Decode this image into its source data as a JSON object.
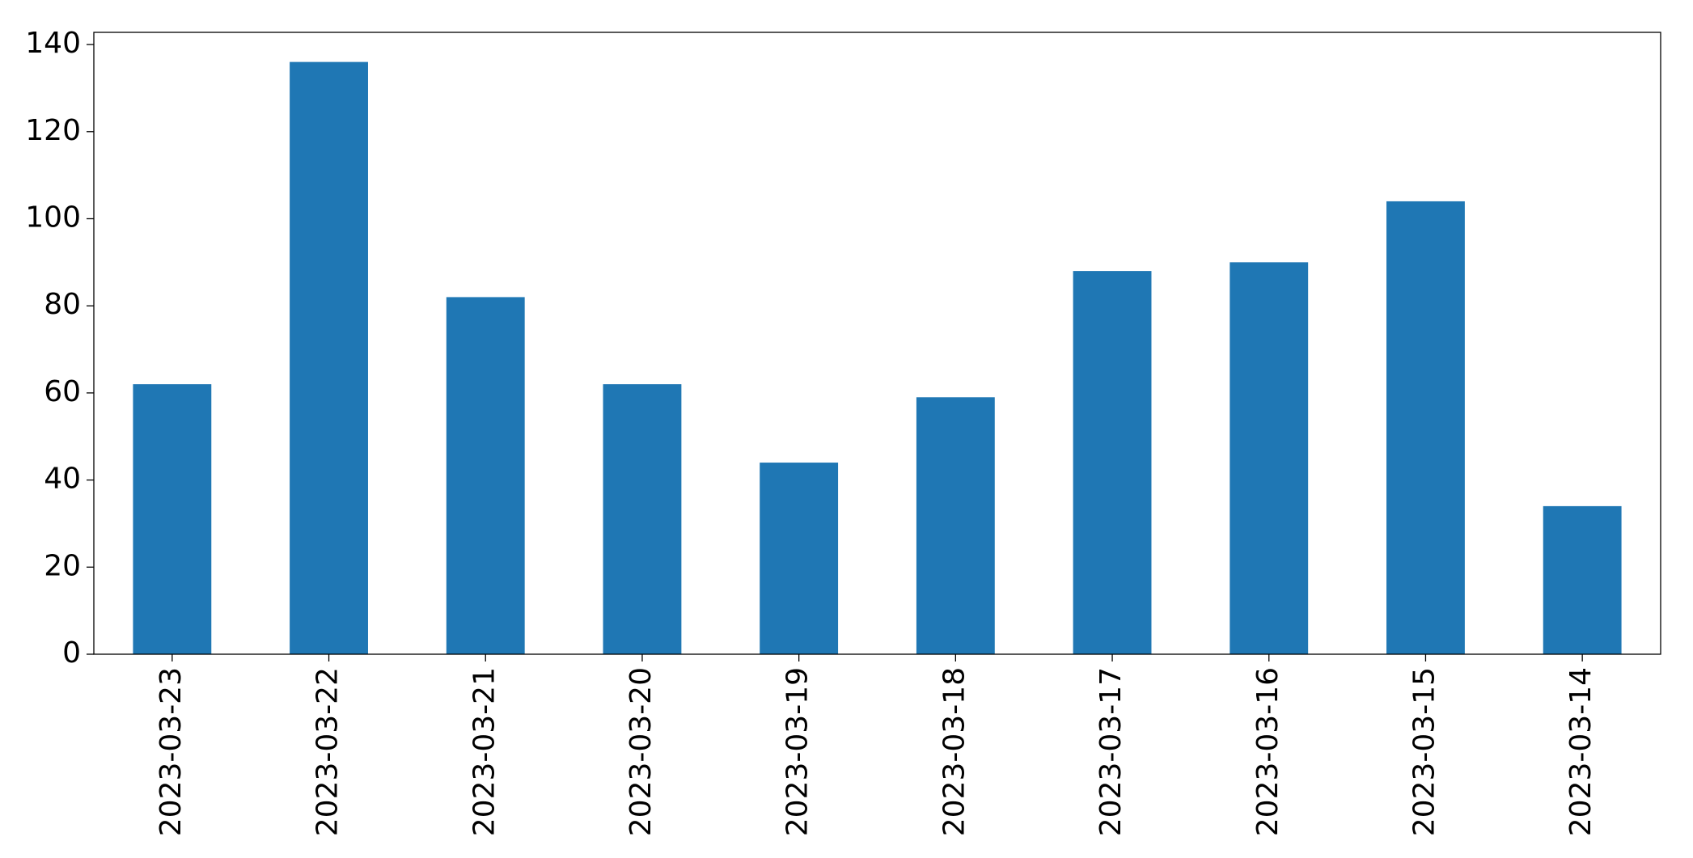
{
  "chart_data": {
    "type": "bar",
    "categories": [
      "2023-03-23",
      "2023-03-22",
      "2023-03-21",
      "2023-03-20",
      "2023-03-19",
      "2023-03-18",
      "2023-03-17",
      "2023-03-16",
      "2023-03-15",
      "2023-03-14"
    ],
    "values": [
      62,
      136,
      82,
      62,
      44,
      59,
      88,
      90,
      104,
      34
    ],
    "color": "#1f77b4",
    "ylim": [
      0,
      142.8
    ],
    "yticks": [
      0,
      20,
      40,
      60,
      80,
      100,
      120,
      140
    ],
    "grid": false
  }
}
